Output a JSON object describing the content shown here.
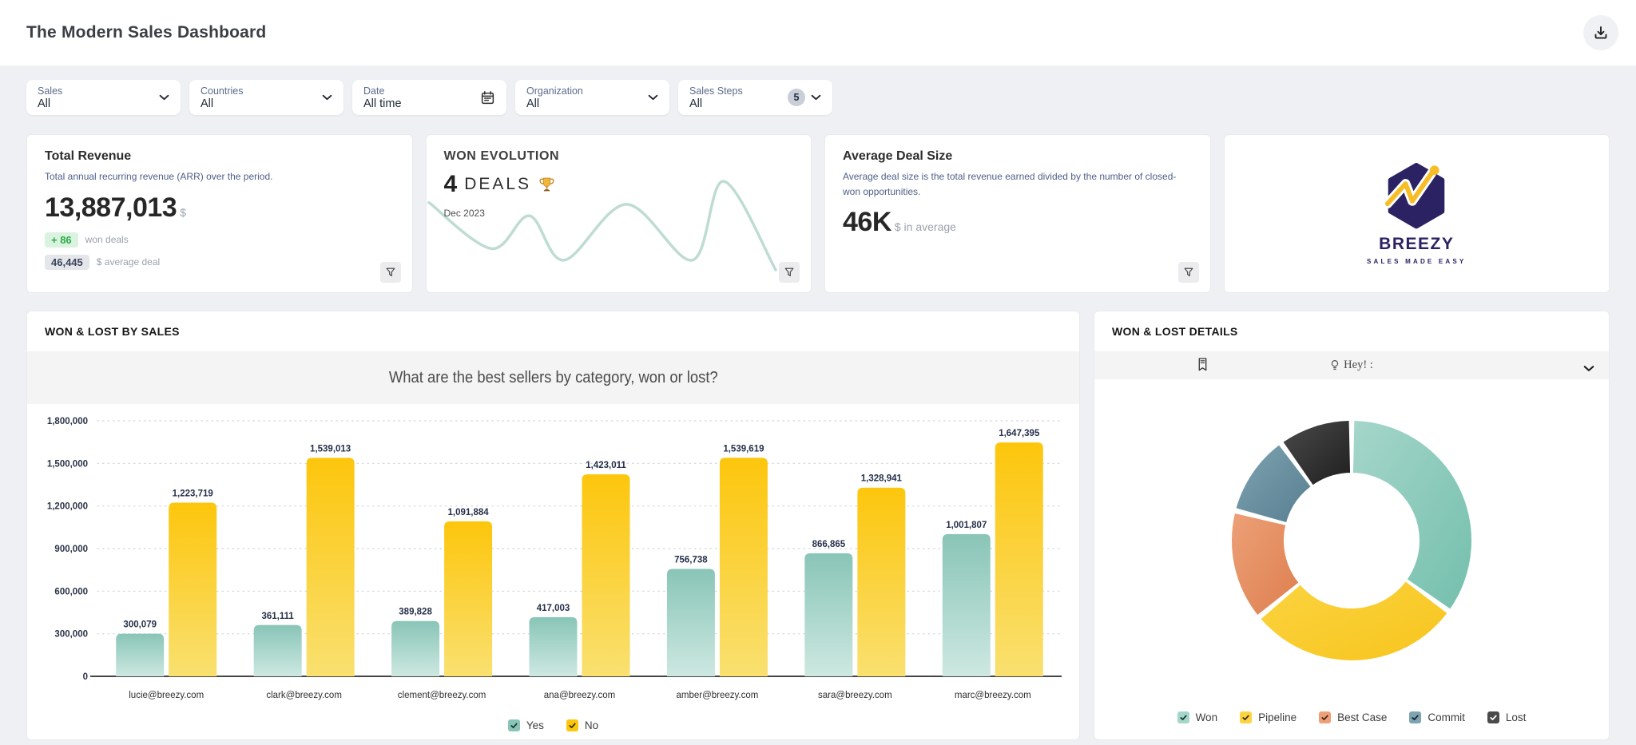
{
  "header": {
    "title": "The Modern Sales Dashboard"
  },
  "icons": {
    "header_action": "download-icon",
    "filter_chip_default": "chevron-down-icon",
    "date_filter": "calendar-icon",
    "card_action": "funnel-filter-icon",
    "won_evolution": "trophy-icon",
    "details_toolbar_left": "bookmark-icon",
    "details_toolbar_hint": "lightbulb-icon",
    "legend_box": "checkmark-icon"
  },
  "filters": [
    {
      "label": "Sales",
      "value": "All"
    },
    {
      "label": "Countries",
      "value": "All"
    },
    {
      "label": "Date",
      "value": "All time"
    },
    {
      "label": "Organization",
      "value": "All"
    },
    {
      "label": "Sales Steps",
      "value": "All",
      "badge": "5"
    }
  ],
  "cards": {
    "total_revenue": {
      "title": "Total Revenue",
      "subtitle": "Total annual recurring revenue (ARR) over the period.",
      "value": "13,887,013",
      "currency": "$",
      "won_badge": "+ 86",
      "won_label": "won deals",
      "avg_badge": "46,445",
      "avg_label": "$ average deal"
    },
    "won_evolution": {
      "title": "WON EVOLUTION",
      "count": "4",
      "unit": "DEALS",
      "period": "Dec 2023"
    },
    "avg_deal_size": {
      "title": "Average Deal Size",
      "subtitle": "Average deal size is the total revenue earned divided by the number of closed-won opportunities.",
      "value": "46K",
      "suffix": "$ in average"
    },
    "brand": {
      "name": "BREEZY",
      "tagline": "SALES MADE EASY"
    }
  },
  "panels": {
    "by_sales": {
      "title": "WON & LOST BY SALES",
      "question": "What are the best sellers by category, won or lost?"
    },
    "details": {
      "title": "WON & LOST DETAILS",
      "hey": "Hey! :"
    }
  },
  "colors": {
    "page_bg": "#eef0f3",
    "teal": "#8fcabd",
    "yellow": "#fdc70f",
    "green_badge": "#2cab47",
    "navy_label": "#25304a",
    "brand_navy": "#2b2263",
    "brand_yellow": "#f6bd26"
  },
  "chart_data": [
    {
      "id": "won_evolution_sparkline",
      "type": "line",
      "color": "#bedcd4",
      "points": [
        [
          0,
          24
        ],
        [
          18,
          76
        ],
        [
          29,
          39
        ],
        [
          39,
          89
        ],
        [
          57,
          26
        ],
        [
          76,
          89
        ],
        [
          85,
          0
        ],
        [
          100,
          100
        ]
      ]
    },
    {
      "id": "won_lost_by_sales",
      "type": "bar",
      "title": "WON & LOST BY SALES",
      "categories": [
        "lucie@breezy.com",
        "clark@breezy.com",
        "clement@breezy.com",
        "ana@breezy.com",
        "amber@breezy.com",
        "sara@breezy.com",
        "marc@breezy.com"
      ],
      "series": [
        {
          "name": "Yes",
          "color": "#89c5b7",
          "color2": "#cde8e1",
          "check": "#1f3a33",
          "values": [
            300079,
            361111,
            389828,
            417003,
            756738,
            866865,
            1001807
          ]
        },
        {
          "name": "No",
          "color": "#fdc60d",
          "color2": "#f9e070",
          "check": "#3a3413",
          "values": [
            1223719,
            1539013,
            1091884,
            1423011,
            1539619,
            1328941,
            1647395
          ]
        }
      ],
      "ylim": [
        0,
        1800000
      ],
      "ytick_step": 300000,
      "grid": "dotted",
      "legend_position": "bottom"
    },
    {
      "id": "won_lost_details",
      "type": "donut",
      "segments": [
        {
          "label": "Won",
          "value": 35,
          "color": "#a5d6ca",
          "color2": "#74bfad",
          "check": "#1f3a33"
        },
        {
          "label": "Pipeline",
          "value": 29,
          "color": "#fbd440",
          "color2": "#f7c41d",
          "check": "#3a3413"
        },
        {
          "label": "Best Case",
          "value": 15,
          "color": "#eda077",
          "color2": "#dd7f4f",
          "check": "#4a2a18"
        },
        {
          "label": "Commit",
          "value": 11,
          "color": "#7fa3b2",
          "color2": "#577f90",
          "check": "#17272e"
        },
        {
          "label": "Lost",
          "value": 10,
          "color": "#4a4a4a",
          "color2": "#1f1f1f",
          "check": "#ffffff"
        }
      ],
      "legend_position": "bottom"
    }
  ]
}
